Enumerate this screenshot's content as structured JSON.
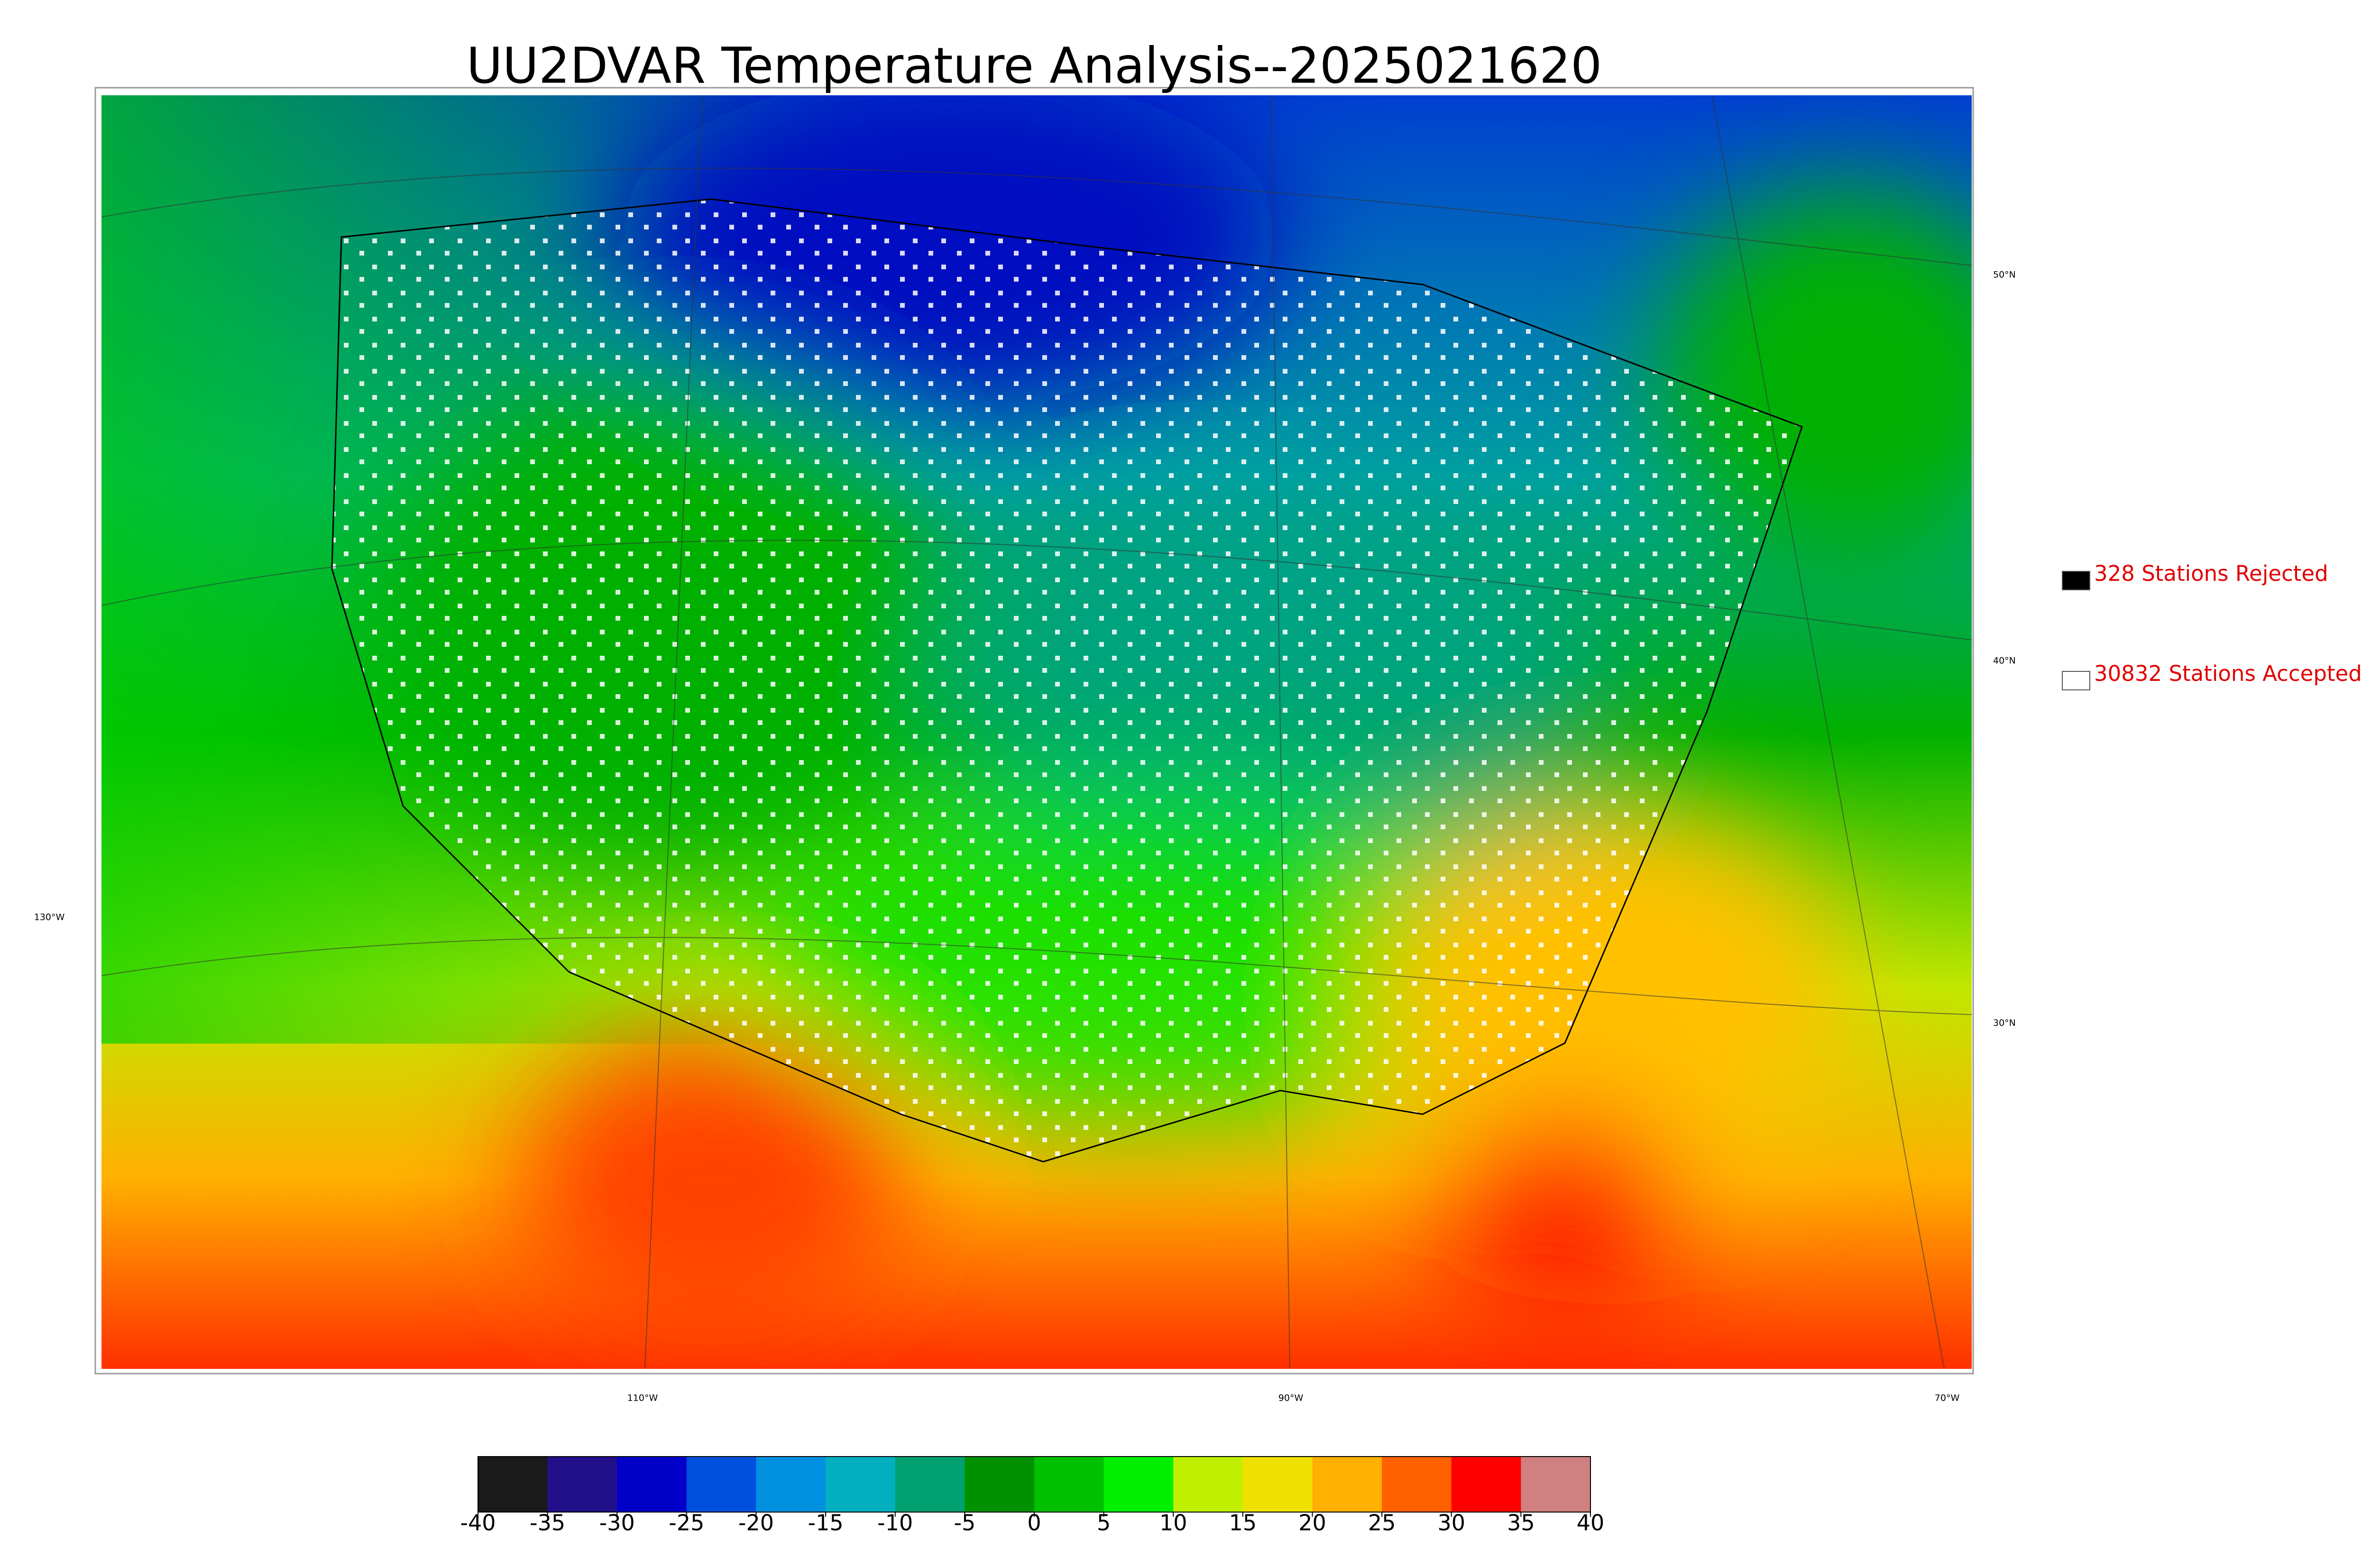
{
  "title": "UU2DVAR Temperature Analysis--2025021620",
  "graticule_labels": {
    "lat": [
      "50°N",
      "40°N",
      "30°N"
    ],
    "lon": [
      "130°W",
      "110°W",
      "90°W",
      "70°W"
    ]
  },
  "legend": [
    {
      "label": "328 Stations Rejected",
      "color": "#000000"
    },
    {
      "label": "30832 Stations Accepted",
      "color": "#ffffff"
    }
  ],
  "colorbar": {
    "lim": [
      -40,
      40
    ],
    "ticks": [
      -40,
      -35,
      -30,
      -25,
      -20,
      -15,
      -10,
      -5,
      0,
      5,
      10,
      15,
      20,
      25,
      30,
      35,
      40
    ],
    "colors": [
      "#1a1a1a",
      "#22108a",
      "#0000c8",
      "#0050e0",
      "#0090e0",
      "#00b0c0",
      "#00a070",
      "#009000",
      "#00c000",
      "#00f000",
      "#c0f000",
      "#f0e000",
      "#ffb000",
      "#ff6000",
      "#ff0000",
      "#d08080"
    ]
  }
}
